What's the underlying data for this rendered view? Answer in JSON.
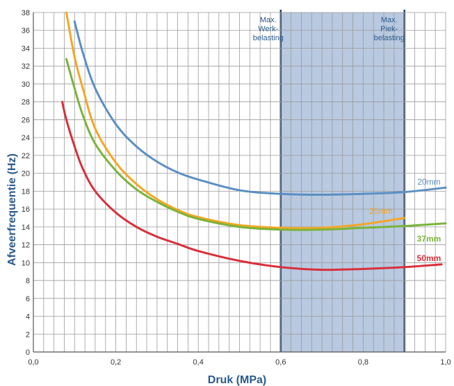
{
  "chart_data": {
    "type": "line",
    "title": "",
    "xlabel": "Druk (MPa)",
    "ylabel": "Afveerfrequentie (Hz)",
    "xlim": [
      0,
      1.0
    ],
    "ylim": [
      0,
      38
    ],
    "x_ticks": [
      "0,0",
      "0,2",
      "0,4",
      "0,6",
      "0,8",
      "1,0"
    ],
    "y_ticks": [
      "0",
      "2",
      "4",
      "6",
      "8",
      "10",
      "12",
      "14",
      "16",
      "18",
      "20",
      "22",
      "24",
      "26",
      "28",
      "30",
      "32",
      "34",
      "36",
      "38"
    ],
    "grid": true,
    "shaded_region": {
      "x_start": 0.6,
      "x_end": 0.9,
      "color": "#b8c9e0",
      "start_label": [
        "Max.",
        "Werk-",
        "belasting"
      ],
      "end_label": [
        "Max.",
        "Piek-",
        "belasting"
      ]
    },
    "series": [
      {
        "name": "20mm",
        "color": "#5b8fc3",
        "x": [
          0.1,
          0.12,
          0.15,
          0.2,
          0.25,
          0.3,
          0.35,
          0.4,
          0.5,
          0.6,
          0.7,
          0.8,
          0.9,
          1.0
        ],
        "y": [
          37,
          33.5,
          29.5,
          25.5,
          23,
          21.3,
          20.1,
          19.3,
          18.1,
          17.7,
          17.6,
          17.7,
          17.9,
          18.4
        ]
      },
      {
        "name": "25mm",
        "color": "#f5a623",
        "x": [
          0.08,
          0.1,
          0.12,
          0.15,
          0.2,
          0.25,
          0.3,
          0.35,
          0.4,
          0.5,
          0.6,
          0.7,
          0.8,
          0.9
        ],
        "y": [
          38,
          33,
          29.5,
          25,
          21.2,
          18.8,
          17.1,
          15.9,
          15.1,
          14.2,
          13.9,
          13.9,
          14.3,
          15.0
        ]
      },
      {
        "name": "37mm",
        "color": "#7ab43a",
        "x": [
          0.08,
          0.1,
          0.12,
          0.15,
          0.2,
          0.25,
          0.3,
          0.35,
          0.4,
          0.5,
          0.6,
          0.7,
          0.8,
          0.9,
          1.0
        ],
        "y": [
          32.8,
          29.5,
          26.5,
          23.3,
          20.3,
          18.2,
          16.8,
          15.7,
          14.9,
          14.0,
          13.7,
          13.7,
          13.9,
          14.1,
          14.4
        ]
      },
      {
        "name": "50mm",
        "color": "#d92f3a",
        "x": [
          0.07,
          0.08,
          0.1,
          0.12,
          0.15,
          0.2,
          0.25,
          0.3,
          0.35,
          0.4,
          0.5,
          0.6,
          0.7,
          0.8,
          0.9,
          0.99
        ],
        "y": [
          28,
          26,
          23,
          20.5,
          18,
          15.6,
          14,
          12.9,
          12.1,
          11.3,
          10.2,
          9.5,
          9.2,
          9.3,
          9.5,
          9.8
        ]
      }
    ],
    "series_labels": [
      "20mm",
      "25mm",
      "37mm",
      "50mm"
    ]
  }
}
